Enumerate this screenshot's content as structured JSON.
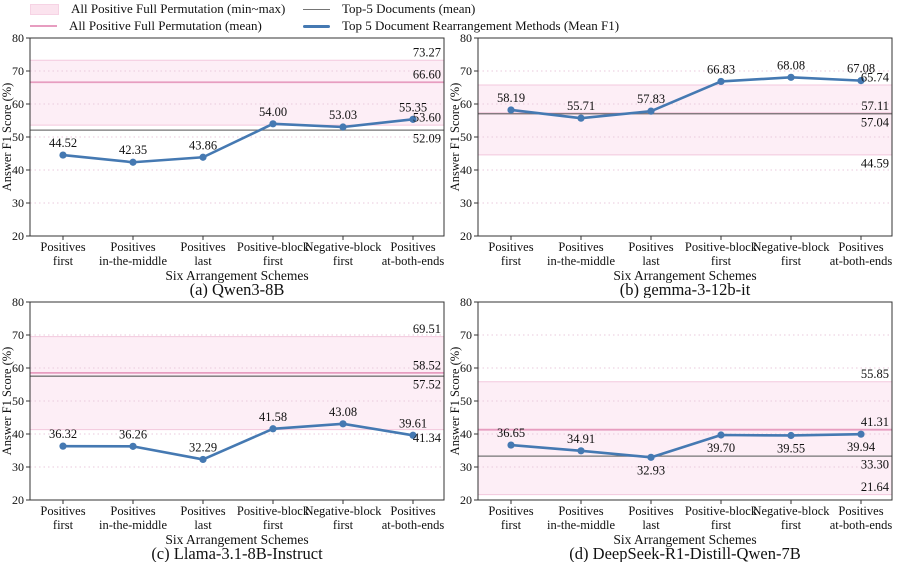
{
  "legend": {
    "items": [
      {
        "label": "All Positive Full Permutation (min~max)",
        "swatch": "pink-band"
      },
      {
        "label": "All Positive Full Permutation (mean)",
        "swatch": "pink-line"
      },
      {
        "label": "Top-5 Documents (mean)",
        "swatch": "gray-line"
      },
      {
        "label": "Top 5 Document Rearrangement Methods (Mean F1)",
        "swatch": "blue-line"
      }
    ]
  },
  "colors": {
    "series_blue": "#4579b2",
    "perm_mean_pink": "#e79dc0",
    "band_fill": "#fdeef6",
    "band_edge": "#f3c8dd",
    "top5_gray": "#757575",
    "grid_pink": "#e9c9dc",
    "spine": "#333333",
    "text": "#111111"
  },
  "chart_data": {
    "type": "line",
    "ylabel": "Answer F1 Score (%)",
    "xlabel": "Six Arrangement Schemes",
    "ylim": [
      20,
      80
    ],
    "yticks": [
      20,
      30,
      40,
      50,
      60,
      70,
      80
    ],
    "grid": "dotted horizontal",
    "legend_position": "top",
    "categories": [
      [
        "Positives",
        "first"
      ],
      [
        "Positives",
        "in-the-middle"
      ],
      [
        "Positives",
        "last"
      ],
      [
        "Positive-block",
        "first"
      ],
      [
        "Negative-block",
        "first"
      ],
      [
        "Positives",
        "at-both-ends"
      ]
    ],
    "panels": [
      {
        "caption": "(a) Qwen3-8B",
        "points": [
          "44.52",
          "42.35",
          "43.86",
          "54.00",
          "53.03",
          "55.35"
        ],
        "point_label_pos": [
          "above",
          "above",
          "above",
          "above",
          "above",
          "above"
        ],
        "band_min": "53.60",
        "band_max": "73.27",
        "perm_mean": "66.60",
        "top5_mean": "52.09",
        "edge_label_pos": {
          "band_max": "above",
          "perm_mean": "above",
          "band_min": "above",
          "top5_mean": "below"
        }
      },
      {
        "caption": "(b) gemma-3-12b-it",
        "points": [
          "58.19",
          "55.71",
          "57.83",
          "66.83",
          "68.08",
          "67.08"
        ],
        "point_label_pos": [
          "above",
          "above",
          "above",
          "above",
          "above",
          "above"
        ],
        "band_min": "44.59",
        "band_max": "65.74",
        "perm_mean": "57.11",
        "top5_mean": "57.04",
        "edge_label_pos": {
          "band_max": "above",
          "perm_mean": "above",
          "band_min": "below",
          "top5_mean": "below"
        }
      },
      {
        "caption": "(c) Llama-3.1-8B-Instruct",
        "points": [
          "36.32",
          "36.26",
          "32.29",
          "41.58",
          "43.08",
          "39.61"
        ],
        "point_label_pos": [
          "above",
          "above",
          "above",
          "above",
          "above",
          "above"
        ],
        "band_min": "41.34",
        "band_max": "69.51",
        "perm_mean": "58.52",
        "top5_mean": "57.52",
        "edge_label_pos": {
          "band_max": "above",
          "perm_mean": "above",
          "band_min": "below",
          "top5_mean": "below"
        }
      },
      {
        "caption": "(d) DeepSeek-R1-Distill-Qwen-7B",
        "points": [
          "36.65",
          "34.91",
          "32.93",
          "39.70",
          "39.55",
          "39.94"
        ],
        "point_label_pos": [
          "above",
          "above",
          "below",
          "below",
          "below",
          "below"
        ],
        "band_min": "21.64",
        "band_max": "55.85",
        "perm_mean": "41.31",
        "top5_mean": "33.30",
        "edge_label_pos": {
          "band_max": "above",
          "perm_mean": "above",
          "band_min": "above",
          "top5_mean": "below"
        }
      }
    ]
  }
}
